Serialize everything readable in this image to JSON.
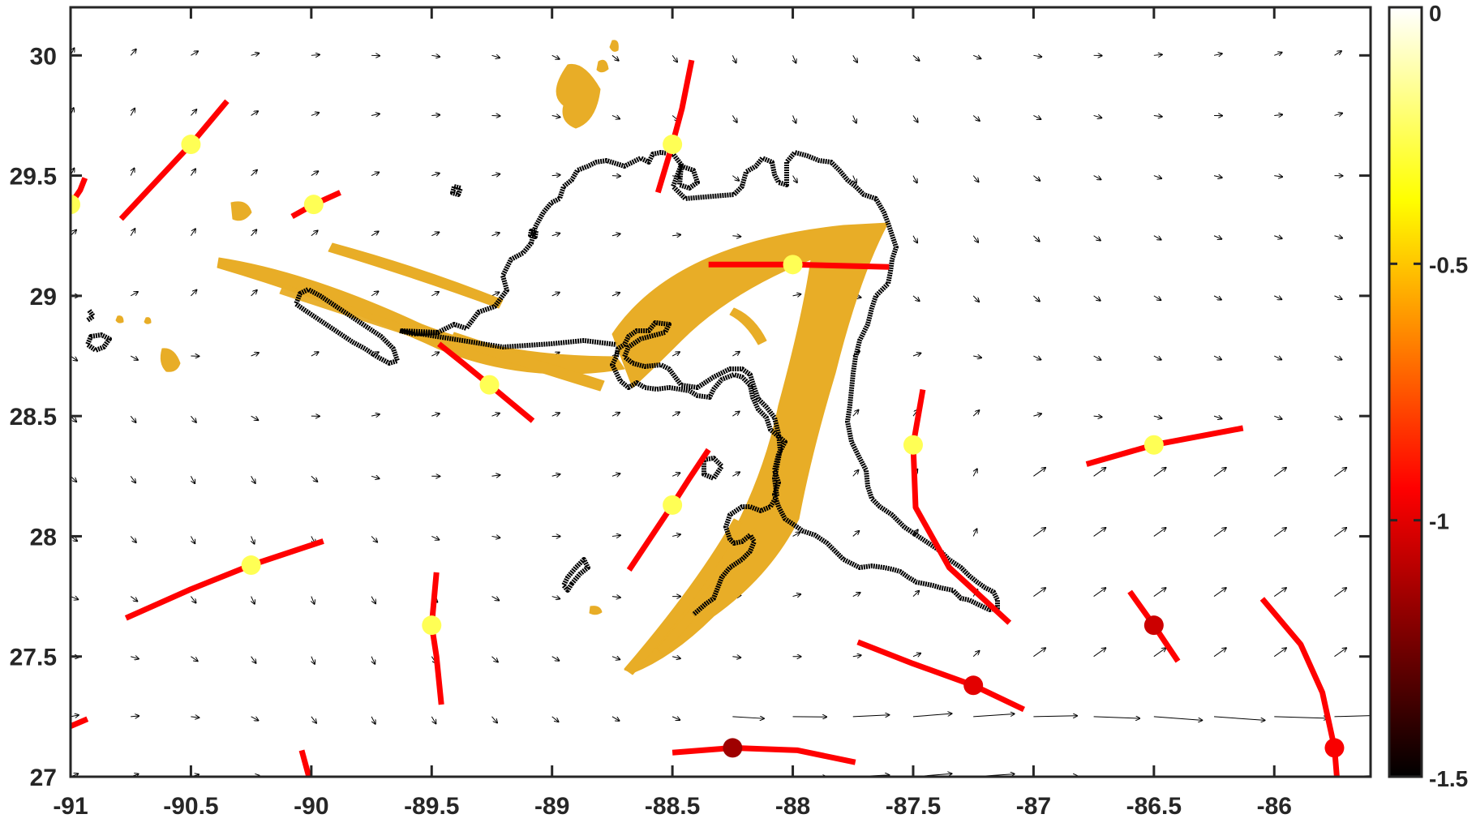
{
  "chart_data": {
    "type": "scatter",
    "title": "",
    "xlabel": "",
    "ylabel": "",
    "xlim": [
      -91.0,
      -85.6
    ],
    "ylim": [
      27.0,
      30.2
    ],
    "x_ticks": [
      -91,
      -90.5,
      -90,
      -89.5,
      -89,
      -88.5,
      -88,
      -87.5,
      -87,
      -86.5,
      -86
    ],
    "x_tick_labels": [
      "-91",
      "-90.5",
      "-90",
      "-89.5",
      "-89",
      "-88.5",
      "-88",
      "-87.5",
      "-87",
      "-86.5",
      "-86"
    ],
    "y_ticks": [
      27,
      27.5,
      28,
      28.5,
      29,
      29.5,
      30
    ],
    "y_tick_labels": [
      "27",
      "27.5",
      "28",
      "28.5",
      "29",
      "29.5",
      "30"
    ],
    "colorbar": {
      "range": [
        -1.5,
        0
      ],
      "ticks": [
        0,
        -0.5,
        -1,
        -1.5
      ],
      "tick_labels": [
        "0",
        "-0.5",
        "-1",
        "-1.5"
      ],
      "colormap": "hot"
    },
    "colors": {
      "drifter_track": "#ff0000",
      "oil_particles": "#e8ad27",
      "outline": "#000000",
      "vectors": "#000000"
    },
    "drifter_points": [
      {
        "x": -91.0,
        "y": 29.38,
        "value": -0.25
      },
      {
        "x": -90.5,
        "y": 29.63,
        "value": -0.25
      },
      {
        "x": -89.99,
        "y": 29.38,
        "value": -0.25
      },
      {
        "x": -88.5,
        "y": 29.63,
        "value": -0.25
      },
      {
        "x": -88.0,
        "y": 29.13,
        "value": -0.25
      },
      {
        "x": -89.26,
        "y": 28.63,
        "value": -0.25
      },
      {
        "x": -87.5,
        "y": 28.38,
        "value": -0.25
      },
      {
        "x": -86.5,
        "y": 28.38,
        "value": -0.25
      },
      {
        "x": -88.5,
        "y": 28.13,
        "value": -0.25
      },
      {
        "x": -90.25,
        "y": 27.88,
        "value": -0.25
      },
      {
        "x": -89.5,
        "y": 27.63,
        "value": -0.25
      },
      {
        "x": -86.5,
        "y": 27.63,
        "value": -1.05
      },
      {
        "x": -87.25,
        "y": 27.38,
        "value": -1.0
      },
      {
        "x": -88.25,
        "y": 27.12,
        "value": -1.15
      },
      {
        "x": -85.75,
        "y": 27.12,
        "value": -0.95
      }
    ],
    "drifter_tracks": [
      [
        [
          -90.94,
          29.49
        ],
        [
          -90.96,
          29.44
        ],
        [
          -91.0,
          29.38
        ]
      ],
      [
        [
          -90.79,
          29.32
        ],
        [
          -90.65,
          29.47
        ],
        [
          -90.5,
          29.63
        ],
        [
          -90.35,
          29.81
        ]
      ],
      [
        [
          -90.08,
          29.33
        ],
        [
          -89.99,
          29.38
        ],
        [
          -89.88,
          29.43
        ]
      ],
      [
        [
          -88.56,
          29.43
        ],
        [
          -88.53,
          29.53
        ],
        [
          -88.5,
          29.63
        ],
        [
          -88.46,
          29.78
        ],
        [
          -88.42,
          29.98
        ]
      ],
      [
        [
          -88.35,
          29.13
        ],
        [
          -88.0,
          29.13
        ],
        [
          -87.6,
          29.12
        ]
      ],
      [
        [
          -89.47,
          28.8
        ],
        [
          -89.37,
          28.72
        ],
        [
          -89.26,
          28.63
        ],
        [
          -89.08,
          28.48
        ]
      ],
      [
        [
          -87.46,
          28.61
        ],
        [
          -87.5,
          28.38
        ],
        [
          -87.49,
          28.12
        ],
        [
          -87.35,
          27.87
        ],
        [
          -87.1,
          27.64
        ]
      ],
      [
        [
          -86.78,
          28.3
        ],
        [
          -86.5,
          28.38
        ],
        [
          -86.13,
          28.45
        ]
      ],
      [
        [
          -88.35,
          28.36
        ],
        [
          -88.43,
          28.24
        ],
        [
          -88.5,
          28.13
        ],
        [
          -88.6,
          27.98
        ],
        [
          -88.68,
          27.86
        ]
      ],
      [
        [
          -90.77,
          27.66
        ],
        [
          -90.5,
          27.78
        ],
        [
          -90.25,
          27.88
        ],
        [
          -89.95,
          27.98
        ]
      ],
      [
        [
          -89.48,
          27.85
        ],
        [
          -89.5,
          27.63
        ],
        [
          -89.48,
          27.5
        ],
        [
          -89.46,
          27.3
        ]
      ],
      [
        [
          -86.6,
          27.77
        ],
        [
          -86.5,
          27.63
        ],
        [
          -86.4,
          27.48
        ]
      ],
      [
        [
          -87.73,
          27.56
        ],
        [
          -87.5,
          27.47
        ],
        [
          -87.25,
          27.38
        ],
        [
          -87.04,
          27.28
        ]
      ],
      [
        [
          -88.5,
          27.1
        ],
        [
          -88.25,
          27.12
        ],
        [
          -87.98,
          27.11
        ],
        [
          -87.74,
          27.06
        ]
      ],
      [
        [
          -86.05,
          27.74
        ],
        [
          -85.89,
          27.55
        ],
        [
          -85.8,
          27.35
        ],
        [
          -85.75,
          27.12
        ],
        [
          -85.74,
          27.0
        ]
      ],
      [
        [
          -91.0,
          27.21
        ],
        [
          -90.93,
          27.24
        ]
      ],
      [
        [
          -90.04,
          27.11
        ],
        [
          -90.01,
          27.0
        ]
      ]
    ]
  }
}
